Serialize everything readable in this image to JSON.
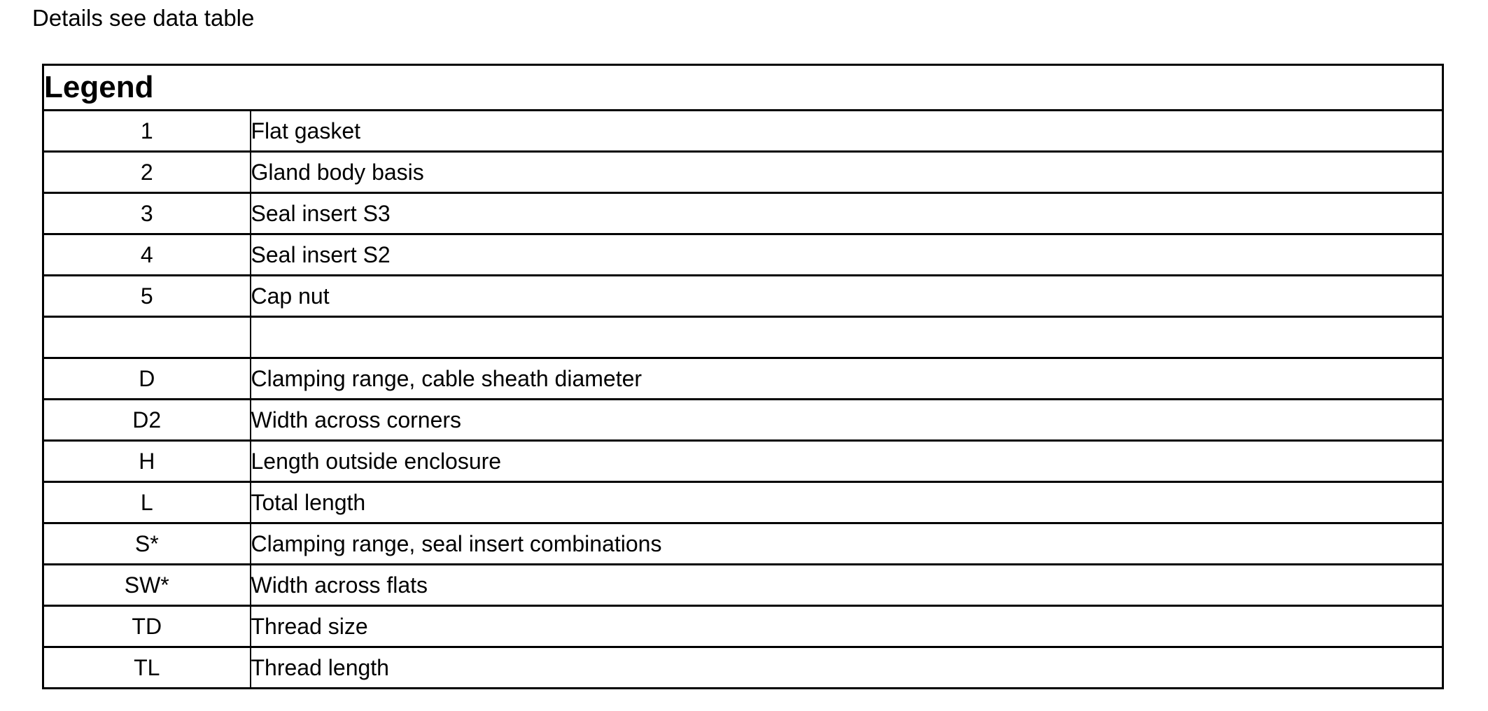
{
  "note": "Details see data table",
  "legend": {
    "title": "Legend",
    "rows": [
      {
        "key": "1",
        "description": "Flat gasket"
      },
      {
        "key": "2",
        "description": "Gland body basis"
      },
      {
        "key": "3",
        "description": "Seal insert S3"
      },
      {
        "key": "4",
        "description": "Seal insert S2"
      },
      {
        "key": "5",
        "description": "Cap nut"
      },
      {
        "key": "",
        "description": ""
      },
      {
        "key": "D",
        "description": "Clamping range, cable sheath diameter"
      },
      {
        "key": "D2",
        "description": "Width across corners"
      },
      {
        "key": "H",
        "description": "Length outside enclosure"
      },
      {
        "key": "L",
        "description": "Total length"
      },
      {
        "key": "S*",
        "description": "Clamping range, seal insert combinations"
      },
      {
        "key": "SW*",
        "description": "Width across flats"
      },
      {
        "key": "TD",
        "description": "Thread size"
      },
      {
        "key": "TL",
        "description": "Thread length"
      }
    ]
  },
  "colors": {
    "background": "#ffffff",
    "text": "#000000",
    "border": "#000000"
  }
}
